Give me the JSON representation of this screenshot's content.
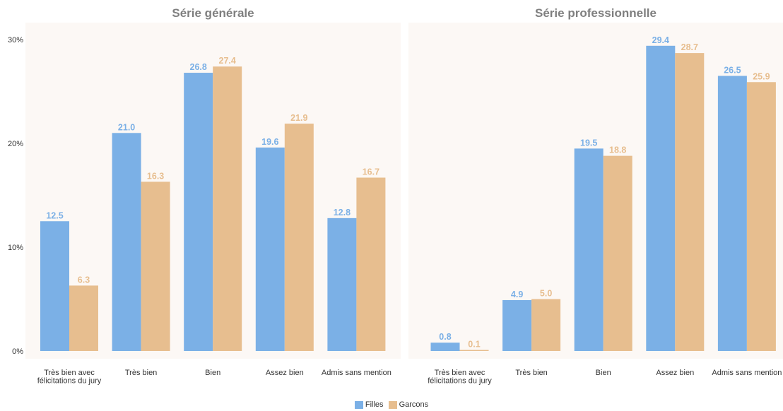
{
  "chart_data": {
    "type": "bar",
    "legend_position": "bottom",
    "grid": false,
    "y_ticks": [
      "0%",
      "10%",
      "20%",
      "30%"
    ],
    "ylim": [
      0,
      31.5
    ],
    "categories": [
      "Très bien avec félicitations du jury",
      "Très bien",
      "Bien",
      "Assez bien",
      "Admis sans mention"
    ],
    "category_lines": [
      [
        "Très bien avec",
        "félicitations du jury"
      ],
      [
        "Très bien"
      ],
      [
        "Bien"
      ],
      [
        "Assez bien"
      ],
      [
        "Admis sans mention"
      ]
    ],
    "series_names": [
      "Filles",
      "Garcons"
    ],
    "colors": {
      "Filles": "#7bb0e6",
      "Garcons": "#e7be8f",
      "panel_bg": "#fcf8f5",
      "title": "#7f7f7f"
    },
    "panels": [
      {
        "title": "Série générale",
        "series": [
          {
            "name": "Filles",
            "values": [
              12.5,
              21.0,
              26.8,
              19.6,
              12.8
            ]
          },
          {
            "name": "Garcons",
            "values": [
              6.3,
              16.3,
              27.4,
              21.9,
              16.7
            ]
          }
        ]
      },
      {
        "title": "Série professionnelle",
        "series": [
          {
            "name": "Filles",
            "values": [
              0.8,
              4.9,
              19.5,
              29.4,
              26.5
            ]
          },
          {
            "name": "Garcons",
            "values": [
              0.1,
              5.0,
              18.8,
              28.7,
              25.9
            ]
          }
        ]
      }
    ]
  }
}
